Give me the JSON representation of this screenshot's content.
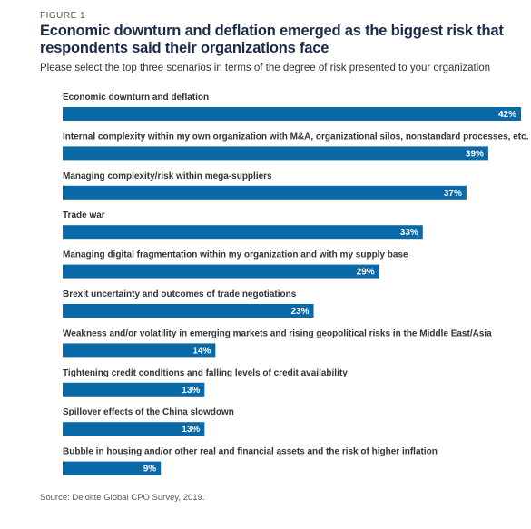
{
  "figure_label": "FIGURE 1",
  "title": "Economic downturn and deflation emerged as the biggest risk that respondents said their organizations face",
  "subtitle": "Please select the top three scenarios in terms of the degree of risk presented to your organization",
  "source": "Source: Deloitte Global CPO Survey, 2019.",
  "bar_color": "#0a6aa8",
  "chart_data": {
    "type": "bar",
    "orientation": "horizontal",
    "categories": [
      "Economic downturn and deflation",
      "Internal complexity within my own organization with M&A, organizational silos, nonstandard processes, etc.",
      "Managing complexity/risk within mega-suppliers",
      "Trade war",
      "Managing digital fragmentation within my organization and with my supply base",
      "Brexit uncertainty and outcomes of trade negotiations",
      "Weakness and/or volatility in emerging markets and rising geopolitical risks in the Middle East/Asia",
      "Tightening credit conditions and falling levels of credit availability",
      "Spillover effects of the China slowdown",
      "Bubble in housing and/or other real and financial assets and the risk of higher inflation"
    ],
    "values": [
      42,
      39,
      37,
      33,
      29,
      23,
      14,
      13,
      13,
      9
    ],
    "labels": [
      "42%",
      "39%",
      "37%",
      "33%",
      "29%",
      "23%",
      "14%",
      "13%",
      "13%",
      "9%"
    ],
    "unit": "%",
    "xlim": [
      0,
      42
    ],
    "grid": false,
    "legend": "none"
  }
}
